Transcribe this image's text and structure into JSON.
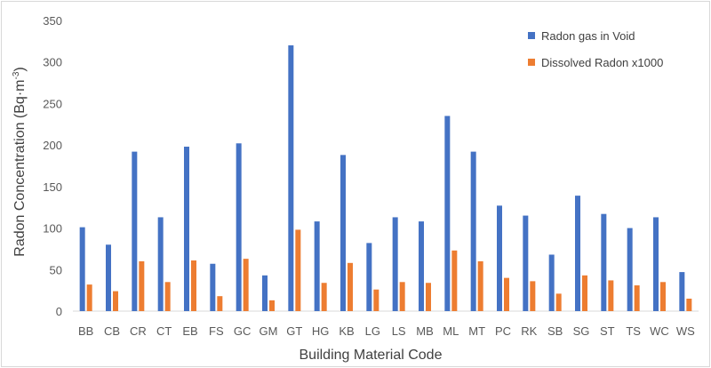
{
  "chart_data": {
    "type": "bar",
    "title": "",
    "xlabel": "Building Material Code",
    "ylabel_main": "Radon Concentration (Bq·m",
    "ylabel_sup": "-3",
    "ylabel_end": ")",
    "ylim": [
      0,
      350
    ],
    "yticks": [
      0,
      50,
      100,
      150,
      200,
      250,
      300,
      350
    ],
    "grid": false,
    "legend_position": "top-right",
    "categories": [
      "BB",
      "CB",
      "CR",
      "CT",
      "EB",
      "FS",
      "GC",
      "GM",
      "GT",
      "HG",
      "KB",
      "LG",
      "LS",
      "MB",
      "ML",
      "MT",
      "PC",
      "RK",
      "SB",
      "SG",
      "ST",
      "TS",
      "WC",
      "WS"
    ],
    "series": [
      {
        "name": "Radon gas in Void",
        "color": "#4472c4",
        "values": [
          101,
          80,
          192,
          113,
          198,
          57,
          202,
          43,
          320,
          108,
          188,
          82,
          113,
          108,
          235,
          192,
          127,
          115,
          68,
          139,
          117,
          100,
          113,
          47
        ]
      },
      {
        "name": "Dissolved Radon x1000",
        "color": "#ed7d31",
        "values": [
          32,
          24,
          60,
          35,
          61,
          18,
          63,
          13,
          98,
          34,
          58,
          26,
          35,
          34,
          73,
          60,
          40,
          36,
          21,
          43,
          37,
          31,
          35,
          15
        ]
      }
    ]
  }
}
